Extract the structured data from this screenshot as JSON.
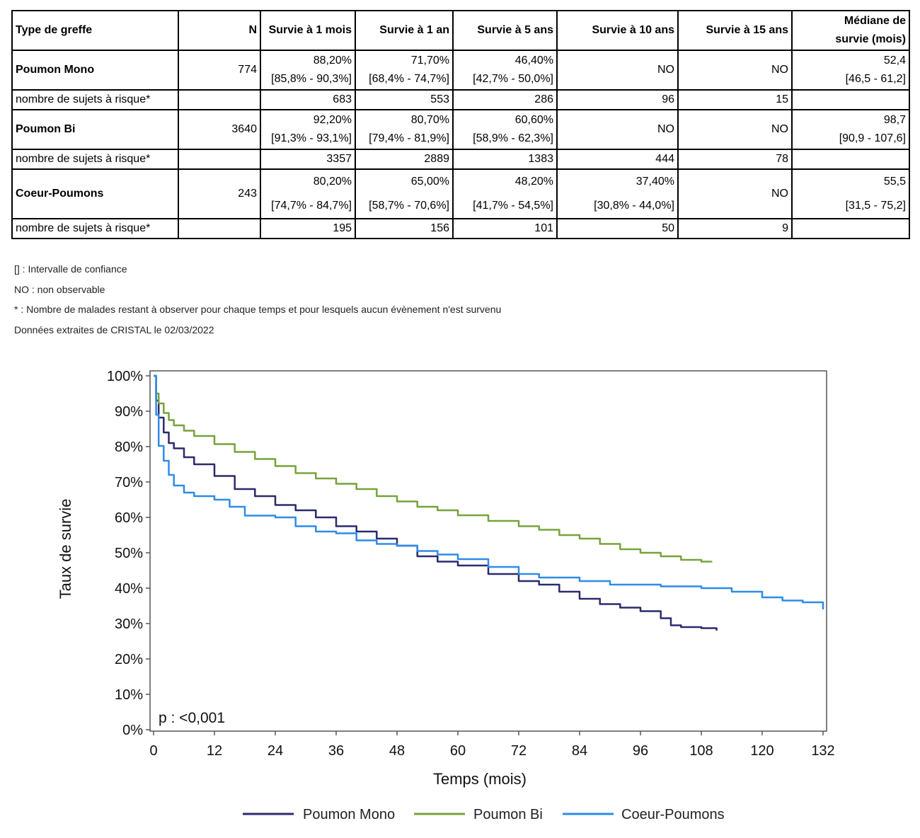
{
  "table": {
    "headers": [
      "Type de greffe",
      "N",
      "Survie à 1 mois",
      "Survie à 1 an",
      "Survie à 5 ans",
      "Survie à 10 ans",
      "Survie à 15 ans",
      "Médiane de",
      "survie (mois)"
    ],
    "groups": [
      {
        "name": "Poumon Mono",
        "n": "774",
        "surv_1m": "88,20%",
        "ci_1m": "[85,8% - 90,3%]",
        "surv_1a": "71,70%",
        "ci_1a": "[68,4% - 74,7%]",
        "surv_5a": "46,40%",
        "ci_5a": "[42,7% - 50,0%]",
        "surv_10a": "NO",
        "ci_10a": "",
        "surv_15a": "NO",
        "median": "52,4",
        "median_ci": "[46,5 - 61,2]",
        "risk_label": "nombre de sujets à risque*",
        "risk": [
          "683",
          "553",
          "286",
          "96",
          "15"
        ]
      },
      {
        "name": "Poumon Bi",
        "n": "3640",
        "surv_1m": "92,20%",
        "ci_1m": "[91,3% - 93,1%]",
        "surv_1a": "80,70%",
        "ci_1a": "[79,4% - 81,9%]",
        "surv_5a": "60,60%",
        "ci_5a": "[58,9% - 62,3%]",
        "surv_10a": "NO",
        "ci_10a": "",
        "surv_15a": "NO",
        "median": "98,7",
        "median_ci": "[90,9 - 107,6]",
        "risk_label": "nombre de sujets à risque*",
        "risk": [
          "3357",
          "2889",
          "1383",
          "444",
          "78"
        ]
      },
      {
        "name": "Coeur-Poumons",
        "n": "243",
        "surv_1m": "80,20%",
        "ci_1m": "[74,7% - 84,7%]",
        "surv_1a": "65,00%",
        "ci_1a": "[58,7% - 70,6%]",
        "surv_5a": "48,20%",
        "ci_5a": "[41,7% - 54,5%]",
        "surv_10a": "37,40%",
        "ci_10a": "[30,8% - 44,0%]",
        "surv_15a": "NO",
        "median": "55,5",
        "median_ci": "[31,5 - 75,2]",
        "risk_label": "nombre de sujets à risque*",
        "risk": [
          "195",
          "156",
          "101",
          "50",
          "9"
        ]
      }
    ]
  },
  "notes": [
    "[] : Intervalle de confiance",
    "NO : non observable",
    "* : Nombre de malades restant à observer pour chaque temps et pour lesquels aucun évènement n'est survenu",
    "Données extraites de CRISTAL le 02/03/2022"
  ],
  "chart_data": {
    "type": "line",
    "title": "",
    "xlabel": "Temps (mois)",
    "ylabel": "Taux de survie",
    "xlim": [
      0,
      132
    ],
    "ylim": [
      0,
      100
    ],
    "xticks": [
      0,
      12,
      24,
      36,
      48,
      60,
      72,
      84,
      96,
      108,
      120,
      132
    ],
    "yticks": [
      0,
      10,
      20,
      30,
      40,
      50,
      60,
      70,
      80,
      90,
      100
    ],
    "ytick_labels": [
      "0%",
      "10%",
      "20%",
      "30%",
      "40%",
      "50%",
      "60%",
      "70%",
      "80%",
      "90%",
      "100%"
    ],
    "annotation": "p : <0,001",
    "legend_position": "bottom",
    "grid": false,
    "series": [
      {
        "name": "Poumon Mono",
        "color": "#2b2a6e",
        "points": [
          [
            0,
            100
          ],
          [
            0.5,
            93
          ],
          [
            1,
            88.2
          ],
          [
            2,
            84
          ],
          [
            3,
            81
          ],
          [
            4,
            79.5
          ],
          [
            6,
            77
          ],
          [
            8,
            75
          ],
          [
            12,
            71.7
          ],
          [
            16,
            68
          ],
          [
            20,
            66
          ],
          [
            24,
            63.5
          ],
          [
            28,
            62
          ],
          [
            32,
            60
          ],
          [
            36,
            57.5
          ],
          [
            40,
            56
          ],
          [
            44,
            54
          ],
          [
            48,
            52
          ],
          [
            52,
            49
          ],
          [
            56,
            47.5
          ],
          [
            60,
            46.4
          ],
          [
            66,
            44
          ],
          [
            72,
            42
          ],
          [
            76,
            41
          ],
          [
            80,
            39
          ],
          [
            84,
            37
          ],
          [
            88,
            35.5
          ],
          [
            92,
            34.5
          ],
          [
            96,
            33.5
          ],
          [
            100,
            31.5
          ],
          [
            102,
            29.5
          ],
          [
            104,
            29
          ],
          [
            108,
            28.7
          ],
          [
            111,
            28
          ]
        ]
      },
      {
        "name": "Poumon Bi",
        "color": "#77a33a",
        "points": [
          [
            0,
            100
          ],
          [
            0.5,
            95
          ],
          [
            1,
            92.2
          ],
          [
            2,
            89.5
          ],
          [
            3,
            87.5
          ],
          [
            4,
            86
          ],
          [
            6,
            84.5
          ],
          [
            8,
            83
          ],
          [
            12,
            80.7
          ],
          [
            16,
            78.5
          ],
          [
            20,
            76.5
          ],
          [
            24,
            74.5
          ],
          [
            28,
            72.5
          ],
          [
            32,
            71
          ],
          [
            36,
            69.5
          ],
          [
            40,
            68
          ],
          [
            44,
            66
          ],
          [
            48,
            64.5
          ],
          [
            52,
            63
          ],
          [
            56,
            62
          ],
          [
            60,
            60.6
          ],
          [
            66,
            59
          ],
          [
            72,
            57.5
          ],
          [
            76,
            56.5
          ],
          [
            80,
            55
          ],
          [
            84,
            54
          ],
          [
            88,
            52.5
          ],
          [
            92,
            51
          ],
          [
            96,
            50
          ],
          [
            100,
            49
          ],
          [
            104,
            48
          ],
          [
            108,
            47.5
          ],
          [
            110,
            47.3
          ]
        ]
      },
      {
        "name": "Coeur-Poumons",
        "color": "#2f8be8",
        "points": [
          [
            0,
            100
          ],
          [
            0.5,
            89
          ],
          [
            1,
            80.2
          ],
          [
            2,
            76
          ],
          [
            3,
            72
          ],
          [
            4,
            69
          ],
          [
            6,
            67
          ],
          [
            8,
            66
          ],
          [
            12,
            65
          ],
          [
            15,
            63
          ],
          [
            18,
            60.5
          ],
          [
            24,
            60
          ],
          [
            28,
            57.5
          ],
          [
            32,
            56
          ],
          [
            36,
            55.5
          ],
          [
            40,
            53.5
          ],
          [
            44,
            52.5
          ],
          [
            48,
            52
          ],
          [
            52,
            50.5
          ],
          [
            56,
            49.5
          ],
          [
            60,
            48.2
          ],
          [
            66,
            46
          ],
          [
            72,
            44
          ],
          [
            76,
            43
          ],
          [
            80,
            43
          ],
          [
            84,
            42
          ],
          [
            90,
            41
          ],
          [
            96,
            41
          ],
          [
            100,
            40.5
          ],
          [
            108,
            40
          ],
          [
            114,
            39
          ],
          [
            120,
            37.4
          ],
          [
            124,
            36.5
          ],
          [
            128,
            36
          ],
          [
            131,
            36
          ],
          [
            132,
            34
          ]
        ]
      }
    ]
  }
}
